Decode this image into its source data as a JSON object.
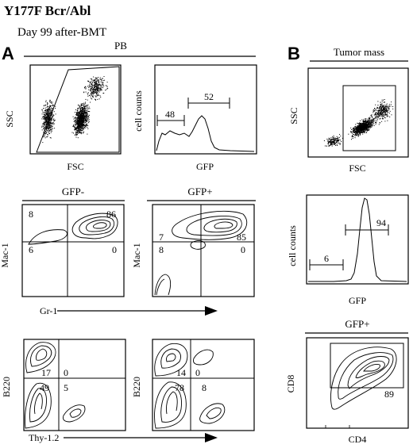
{
  "figure": {
    "title": "Y177F Bcr/Abl",
    "subtitle": "Day 99 after-BMT",
    "panel_a": {
      "letter": "A",
      "group_label": "PB",
      "scatter": {
        "ylabel": "SSC",
        "xlabel": "FSC"
      },
      "histogram": {
        "ylabel": "cell counts",
        "xlabel": "GFP",
        "gate_left": "48",
        "gate_right": "52"
      },
      "gfp_neg_label": "GFP-",
      "gfp_pos_label": "GFP+",
      "mac_neg": {
        "ylabel": "Mac-1",
        "ul": "8",
        "ur": "86",
        "ll": "6",
        "lr": "0"
      },
      "mac_pos": {
        "ylabel": "Mac-1",
        "ul": "7",
        "ur": "85",
        "ll": "8",
        "lr": "0"
      },
      "gr1_label": "Gr-1",
      "b220_neg": {
        "ylabel": "B220",
        "ul": "17",
        "ur": "0",
        "ll": "49",
        "lr": "5"
      },
      "b220_pos": {
        "ylabel": "B220",
        "ul": "14",
        "ur": "0",
        "ll": "78",
        "lr": "8"
      },
      "thy_label": "Thy-1.2"
    },
    "panel_b": {
      "letter": "B",
      "group_label": "Tumor mass",
      "scatter": {
        "ylabel": "SSC",
        "xlabel": "FSC"
      },
      "histogram": {
        "ylabel": "cell counts",
        "xlabel": "GFP",
        "gate_left": "6",
        "gate_right": "94"
      },
      "gfp_pos_label": "GFP+",
      "cd": {
        "ylabel": "CD8",
        "xlabel": "CD4",
        "gate": "89"
      }
    }
  }
}
